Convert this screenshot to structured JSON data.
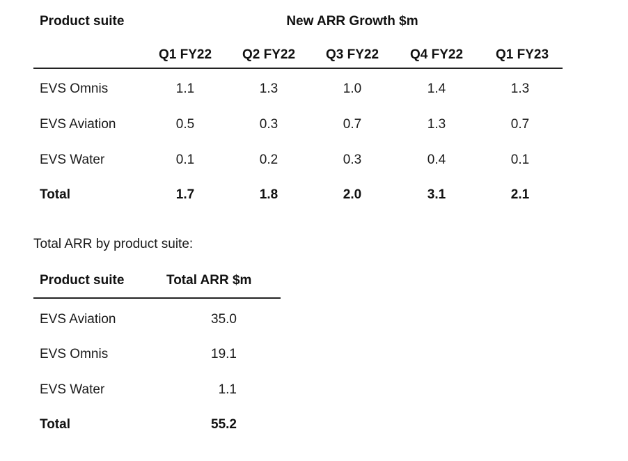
{
  "growth_table": {
    "col_header": "Product suite",
    "group_header": "New ARR Growth $m",
    "quarters": [
      "Q1 FY22",
      "Q2 FY22",
      "Q3 FY22",
      "Q4 FY22",
      "Q1 FY23"
    ],
    "rows": [
      {
        "label": "EVS Omnis",
        "values": [
          "1.1",
          "1.3",
          "1.0",
          "1.4",
          "1.3"
        ]
      },
      {
        "label": "EVS Aviation",
        "values": [
          "0.5",
          "0.3",
          "0.7",
          "1.3",
          "0.7"
        ]
      },
      {
        "label": "EVS Water",
        "values": [
          "0.1",
          "0.2",
          "0.3",
          "0.4",
          "0.1"
        ]
      }
    ],
    "total": {
      "label": "Total",
      "values": [
        "1.7",
        "1.8",
        "2.0",
        "3.1",
        "2.1"
      ]
    }
  },
  "caption": "Total ARR by product suite:",
  "arr_table": {
    "col_header": "Product suite",
    "value_header": "Total ARR $m",
    "rows": [
      {
        "label": "EVS Aviation",
        "value": "35.0"
      },
      {
        "label": "EVS Omnis",
        "value": "19.1"
      },
      {
        "label": "EVS Water",
        "value": "1.1"
      }
    ],
    "total": {
      "label": "Total",
      "value": "55.2"
    }
  }
}
